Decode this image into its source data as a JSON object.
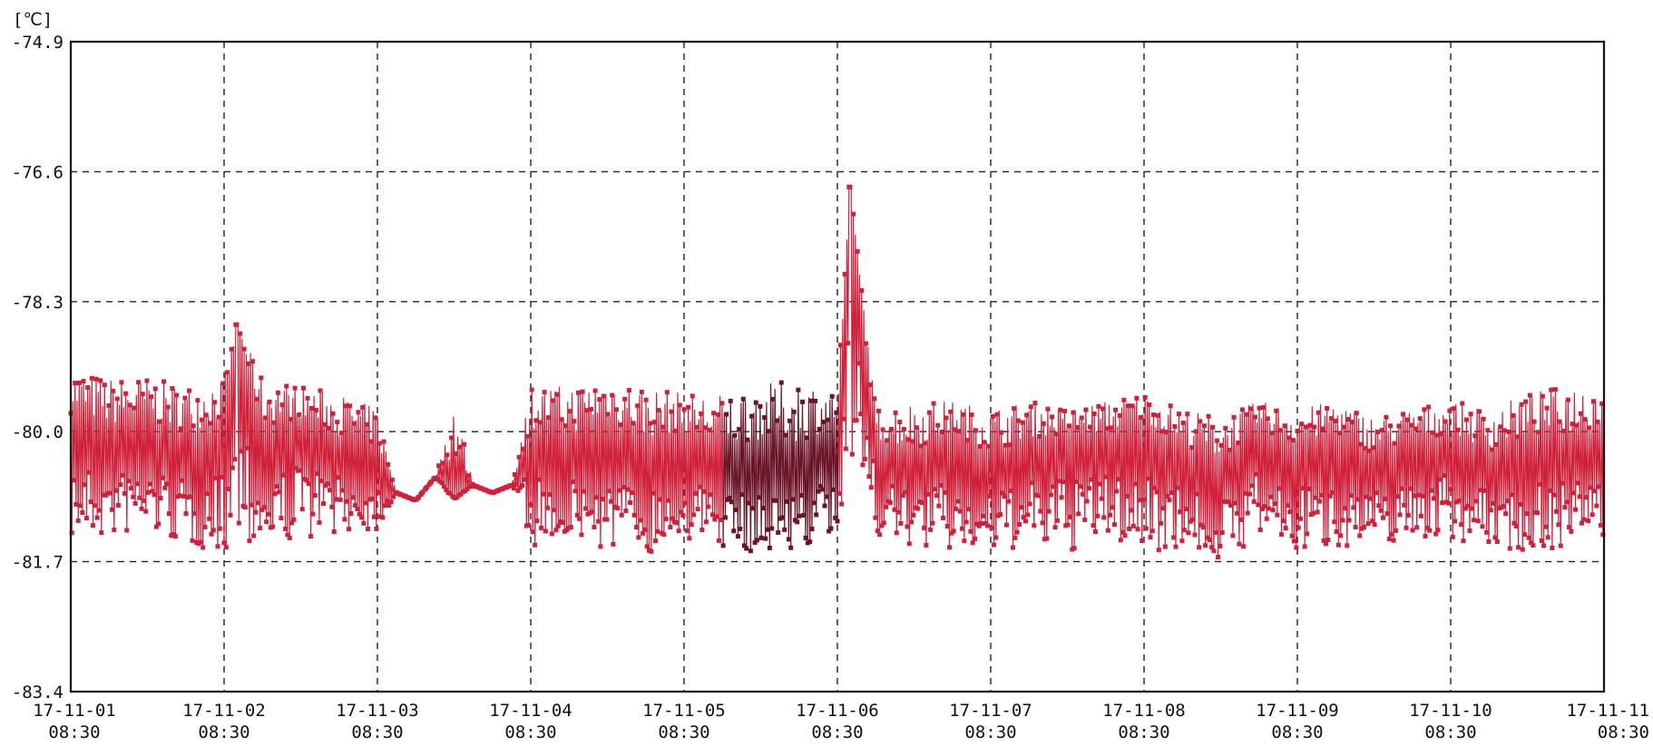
{
  "chart_data": {
    "type": "line",
    "title": "",
    "unit_label": "[℃]",
    "xlabel": "",
    "ylabel": "",
    "ylim": [
      -83.4,
      -74.9
    ],
    "y_ticks": [
      "-74.9",
      "-76.6",
      "-78.3",
      "-80.0",
      "-81.7",
      "-83.4"
    ],
    "x_ticks": [
      {
        "date": "17-11-01",
        "time": "08:30"
      },
      {
        "date": "17-11-02",
        "time": "08:30"
      },
      {
        "date": "17-11-03",
        "time": "08:30"
      },
      {
        "date": "17-11-04",
        "time": "08:30"
      },
      {
        "date": "17-11-05",
        "time": "08:30"
      },
      {
        "date": "17-11-06",
        "time": "08:30"
      },
      {
        "date": "17-11-07",
        "time": "08:30"
      },
      {
        "date": "17-11-08",
        "time": "08:30"
      },
      {
        "date": "17-11-09",
        "time": "08:30"
      },
      {
        "date": "17-11-10",
        "time": "08:30"
      },
      {
        "date": "17-11-11",
        "time": "08:30"
      }
    ],
    "xlim": [
      "17-11-01 08:30",
      "17-11-11 08:30"
    ],
    "grid": true,
    "grid_style": "dashed",
    "line_color": "#d0203a",
    "dark_segment_color": "#6a1428",
    "marker": "square",
    "series": [
      {
        "x": [
          "17-11-01 08:30",
          "17-11-01 14:30",
          "17-11-01 20:30",
          "17-11-02 02:30",
          "17-11-02 08:30",
          "17-11-02 10:30",
          "17-11-02 14:30",
          "17-11-02 20:30",
          "17-11-03 02:30",
          "17-11-03 08:30",
          "17-11-03 11:30",
          "17-11-03 14:30",
          "17-11-03 17:30",
          "17-11-03 20:30",
          "17-11-03 23:30",
          "17-11-04 02:30",
          "17-11-04 05:30",
          "17-11-04 08:30",
          "17-11-04 14:30",
          "17-11-04 20:30",
          "17-11-05 02:30",
          "17-11-05 08:30",
          "17-11-05 14:30",
          "17-11-05 20:30",
          "17-11-06 02:30",
          "17-11-06 08:30",
          "17-11-06 10:30",
          "17-11-06 14:30",
          "17-11-06 20:30",
          "17-11-07 02:30",
          "17-11-07 08:30",
          "17-11-07 14:30",
          "17-11-07 20:30",
          "17-11-08 02:30",
          "17-11-08 08:30",
          "17-11-08 14:30",
          "17-11-08 20:30",
          "17-11-09 02:30",
          "17-11-09 08:30",
          "17-11-09 14:30",
          "17-11-09 20:30",
          "17-11-10 02:30",
          "17-11-10 08:30",
          "17-11-10 14:30",
          "17-11-10 20:30",
          "17-11-11 02:30",
          "17-11-11 08:30"
        ],
        "values": [
          -80.0,
          -80.2,
          -80.1,
          -80.3,
          -80.1,
          -78.6,
          -80.2,
          -80.0,
          -80.3,
          -80.4,
          -80.8,
          -80.9,
          -80.6,
          -80.7,
          -80.7,
          -80.8,
          -80.7,
          -80.2,
          -80.3,
          -80.1,
          -80.4,
          -80.2,
          -80.6,
          -80.4,
          -80.5,
          -80.1,
          -76.8,
          -80.3,
          -80.5,
          -80.2,
          -80.5,
          -80.3,
          -80.2,
          -80.2,
          -80.0,
          -80.4,
          -80.6,
          -80.1,
          -80.4,
          -80.2,
          -80.5,
          -80.3,
          -80.2,
          -80.5,
          -80.3,
          -80.3,
          -80.3
        ],
        "range_max": [
          -79.2,
          -79.3,
          -79.3,
          -79.4,
          -79.3,
          -78.6,
          -79.3,
          -79.4,
          -79.5,
          -79.7,
          -80.8,
          -80.9,
          -80.6,
          -79.5,
          -80.7,
          -80.8,
          -80.7,
          -79.4,
          -79.4,
          -79.3,
          -79.4,
          -79.5,
          -79.5,
          -79.4,
          -79.3,
          -79.5,
          -76.8,
          -79.7,
          -79.6,
          -79.6,
          -79.7,
          -79.6,
          -79.7,
          -79.6,
          -79.5,
          -79.7,
          -79.8,
          -79.6,
          -79.7,
          -79.6,
          -79.8,
          -79.7,
          -79.6,
          -79.7,
          -79.5,
          -79.4,
          -79.3
        ],
        "range_min": [
          -81.4,
          -81.4,
          -81.3,
          -81.5,
          -81.6,
          -81.4,
          -81.5,
          -81.4,
          -81.3,
          -81.3,
          -80.8,
          -80.9,
          -80.6,
          -80.9,
          -80.7,
          -80.8,
          -80.7,
          -81.5,
          -81.4,
          -81.6,
          -81.6,
          -81.4,
          -81.5,
          -81.6,
          -81.5,
          -81.6,
          -80.3,
          -81.4,
          -81.5,
          -81.6,
          -81.6,
          -81.5,
          -81.6,
          -81.4,
          -81.6,
          -81.5,
          -81.7,
          -81.4,
          -81.6,
          -81.5,
          -81.5,
          -81.4,
          -81.4,
          -81.5,
          -81.6,
          -81.5,
          -81.4
        ]
      }
    ]
  }
}
